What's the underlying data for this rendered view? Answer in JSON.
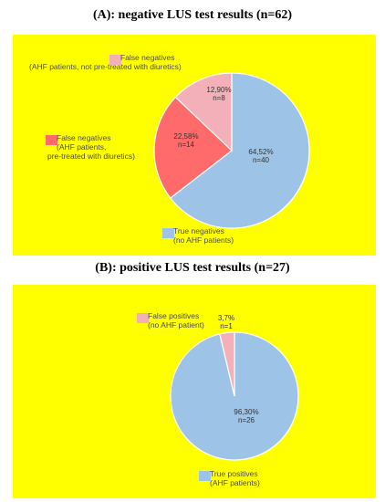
{
  "chart_data": [
    {
      "type": "pie",
      "title": "(A): negative LUS test results (n=62)",
      "slices": [
        {
          "label_lines": [
            "True negatives",
            "(no AHF patients)"
          ],
          "pct_text": "64,52%",
          "n_text": "n=40",
          "value": 64.52,
          "color": "#9dc3e6"
        },
        {
          "label_lines": [
            "False negatives",
            "(AHF patients,",
            "pre-treated with diuretics)"
          ],
          "pct_text": "22,58%",
          "n_text": "n=14",
          "value": 22.58,
          "color": "#ff6b6b"
        },
        {
          "label_lines": [
            "False negatives",
            "(AHF patients, not pre-treated with diuretics)"
          ],
          "pct_text": "12,90%",
          "n_text": "n=8",
          "value": 12.9,
          "color": "#f4b0b8"
        }
      ]
    },
    {
      "type": "pie",
      "title": "(B): positive LUS test results (n=27)",
      "slices": [
        {
          "label_lines": [
            "True positives",
            "(AHF patients)"
          ],
          "pct_text": "96,30%",
          "n_text": "n=26",
          "value": 96.3,
          "color": "#9dc3e6"
        },
        {
          "label_lines": [
            "False positives",
            "(no AHF patient)"
          ],
          "pct_text": "3,7%",
          "n_text": "n=1",
          "value": 3.7,
          "color": "#f4b0b8"
        }
      ]
    }
  ]
}
